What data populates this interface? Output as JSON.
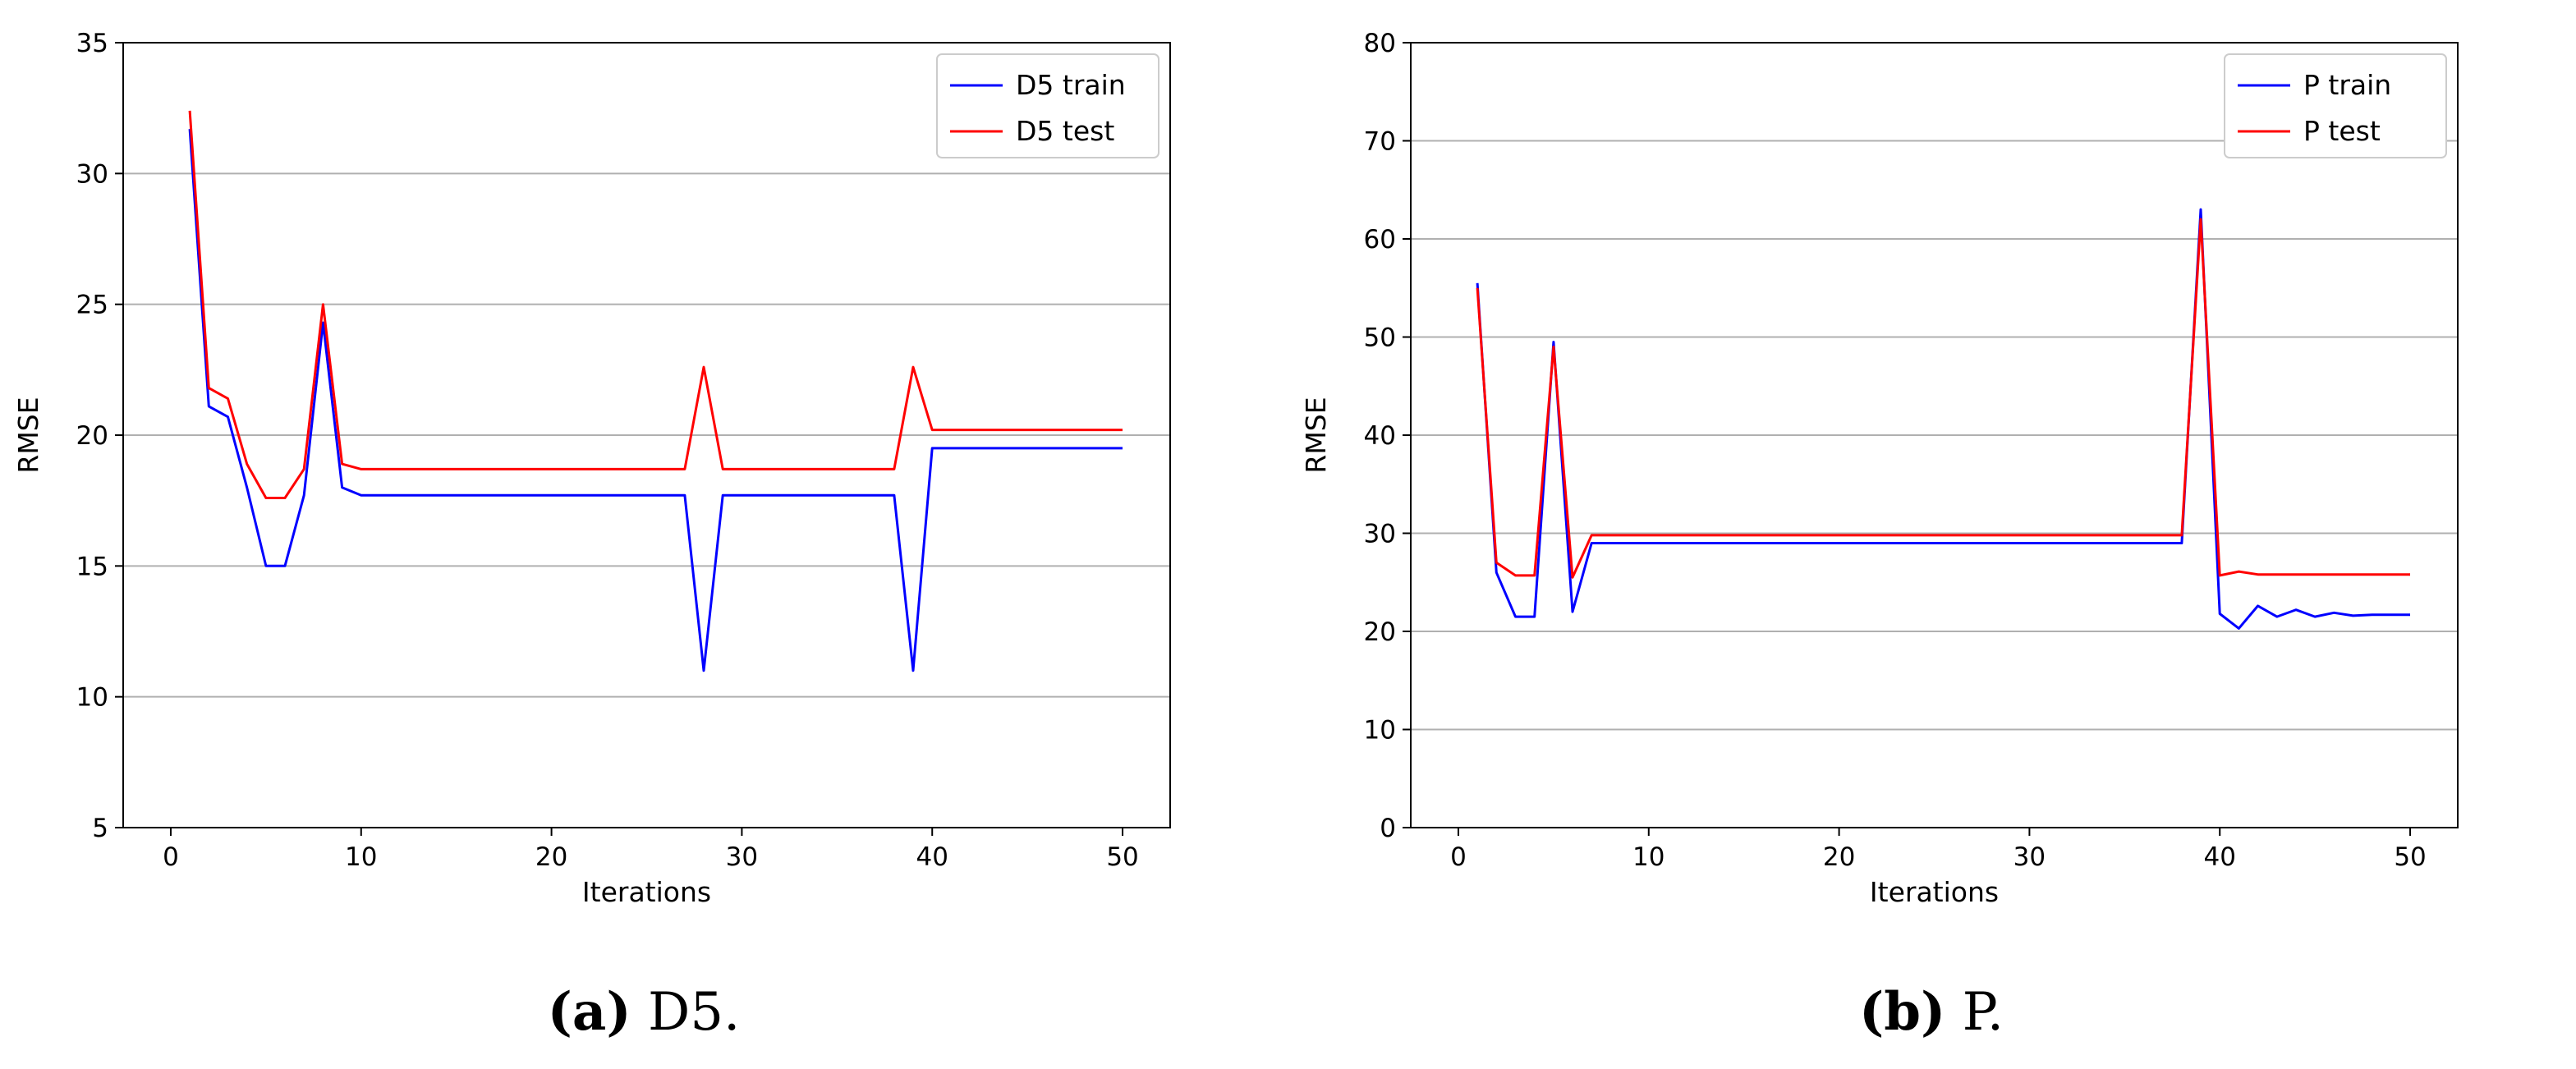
{
  "chart_data": [
    {
      "type": "line",
      "xlabel": "Iterations",
      "ylabel": "RMSE",
      "xlim": [
        -2.5,
        52.5
      ],
      "ylim": [
        5,
        35
      ],
      "xticks": [
        0,
        10,
        20,
        30,
        40,
        50
      ],
      "yticks": [
        5,
        10,
        15,
        20,
        25,
        30,
        35
      ],
      "grid": "y",
      "legend": "top-right",
      "x": [
        1,
        2,
        3,
        4,
        5,
        6,
        7,
        8,
        9,
        10,
        11,
        12,
        13,
        14,
        15,
        16,
        17,
        18,
        19,
        20,
        21,
        22,
        23,
        24,
        25,
        26,
        27,
        28,
        29,
        30,
        31,
        32,
        33,
        34,
        35,
        36,
        37,
        38,
        39,
        40,
        41,
        42,
        43,
        44,
        45,
        46,
        47,
        48,
        49,
        50
      ],
      "series": [
        {
          "name": "D5 train",
          "color": "#0000ff",
          "values": [
            31.7,
            21.1,
            20.7,
            18.0,
            15.0,
            15.0,
            17.7,
            24.3,
            18.0,
            17.7,
            17.7,
            17.7,
            17.7,
            17.7,
            17.7,
            17.7,
            17.7,
            17.7,
            17.7,
            17.7,
            17.7,
            17.7,
            17.7,
            17.7,
            17.7,
            17.7,
            17.7,
            11.0,
            17.7,
            17.7,
            17.7,
            17.7,
            17.7,
            17.7,
            17.7,
            17.7,
            17.7,
            17.7,
            11.0,
            19.5,
            19.5,
            19.5,
            19.5,
            19.5,
            19.5,
            19.5,
            19.5,
            19.5,
            19.5,
            19.5
          ]
        },
        {
          "name": "D5 test",
          "color": "#ff0000",
          "values": [
            32.4,
            21.8,
            21.4,
            18.9,
            17.6,
            17.6,
            18.7,
            25.0,
            18.9,
            18.7,
            18.7,
            18.7,
            18.7,
            18.7,
            18.7,
            18.7,
            18.7,
            18.7,
            18.7,
            18.7,
            18.7,
            18.7,
            18.7,
            18.7,
            18.7,
            18.7,
            18.7,
            22.6,
            18.7,
            18.7,
            18.7,
            18.7,
            18.7,
            18.7,
            18.7,
            18.7,
            18.7,
            18.7,
            22.6,
            20.2,
            20.2,
            20.2,
            20.2,
            20.2,
            20.2,
            20.2,
            20.2,
            20.2,
            20.2,
            20.2
          ]
        }
      ],
      "caption": {
        "label": "(a)",
        "text": "D5."
      }
    },
    {
      "type": "line",
      "xlabel": "Iterations",
      "ylabel": "RMSE",
      "xlim": [
        -2.5,
        52.5
      ],
      "ylim": [
        0,
        80
      ],
      "xticks": [
        0,
        10,
        20,
        30,
        40,
        50
      ],
      "yticks": [
        0,
        10,
        20,
        30,
        40,
        50,
        60,
        70,
        80
      ],
      "grid": "y",
      "legend": "top-right",
      "x": [
        1,
        2,
        3,
        4,
        5,
        6,
        7,
        8,
        9,
        10,
        11,
        12,
        13,
        14,
        15,
        16,
        17,
        18,
        19,
        20,
        21,
        22,
        23,
        24,
        25,
        26,
        27,
        28,
        29,
        30,
        31,
        32,
        33,
        34,
        35,
        36,
        37,
        38,
        39,
        40,
        41,
        42,
        43,
        44,
        45,
        46,
        47,
        48,
        49,
        50
      ],
      "series": [
        {
          "name": "P train",
          "color": "#0000ff",
          "values": [
            55.5,
            26.0,
            21.5,
            21.5,
            49.5,
            22.0,
            29.0,
            29.0,
            29.0,
            29.0,
            29.0,
            29.0,
            29.0,
            29.0,
            29.0,
            29.0,
            29.0,
            29.0,
            29.0,
            29.0,
            29.0,
            29.0,
            29.0,
            29.0,
            29.0,
            29.0,
            29.0,
            29.0,
            29.0,
            29.0,
            29.0,
            29.0,
            29.0,
            29.0,
            29.0,
            29.0,
            29.0,
            29.0,
            63.0,
            21.8,
            20.3,
            22.6,
            21.5,
            22.2,
            21.5,
            21.9,
            21.6,
            21.7,
            21.7,
            21.7
          ]
        },
        {
          "name": "P test",
          "color": "#ff0000",
          "values": [
            55.0,
            27.0,
            25.7,
            25.7,
            49.0,
            25.5,
            29.8,
            29.8,
            29.8,
            29.8,
            29.8,
            29.8,
            29.8,
            29.8,
            29.8,
            29.8,
            29.8,
            29.8,
            29.8,
            29.8,
            29.8,
            29.8,
            29.8,
            29.8,
            29.8,
            29.8,
            29.8,
            29.8,
            29.8,
            29.8,
            29.8,
            29.8,
            29.8,
            29.8,
            29.8,
            29.8,
            29.8,
            29.8,
            62.0,
            25.7,
            26.1,
            25.8,
            25.8,
            25.8,
            25.8,
            25.8,
            25.8,
            25.8,
            25.8,
            25.8
          ]
        }
      ],
      "caption": {
        "label": "(b)",
        "text": "P."
      }
    }
  ]
}
